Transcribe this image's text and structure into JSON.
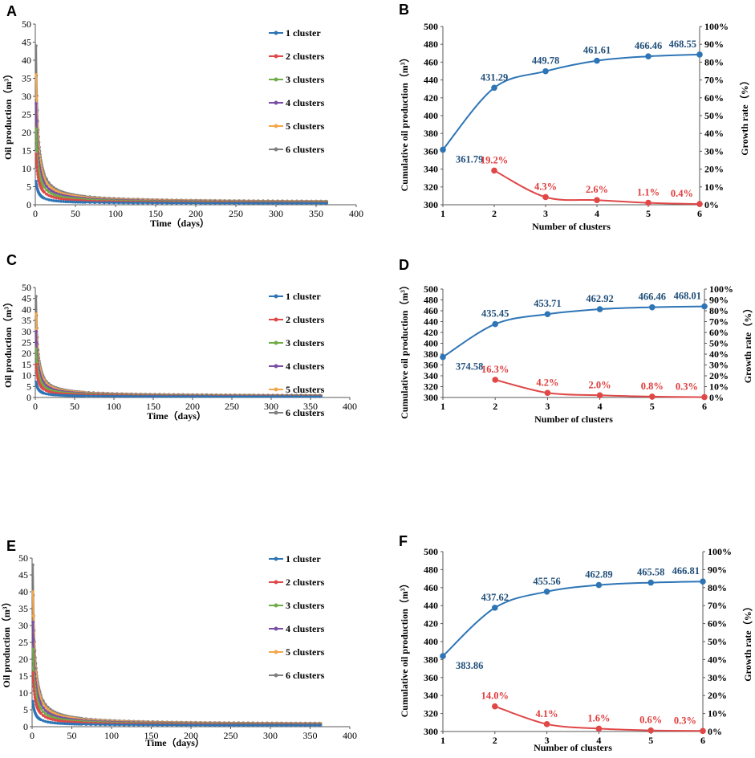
{
  "colors": {
    "c1": "#2E75B6",
    "c2": "#E04848",
    "c3": "#70AD47",
    "c4": "#7B4FA8",
    "c5": "#F4A64C",
    "c6": "#808080",
    "cum": "#2E75B6",
    "growth": "#E04848",
    "cum_label": "#1F4E79",
    "growth_label": "#E03C3C"
  },
  "chart_data": [
    {
      "panel": "A",
      "type": "line",
      "xlabel": "Time（days）",
      "ylabel": "Oil production（m³）",
      "xlim": [
        0,
        400
      ],
      "ylim": [
        0,
        50
      ],
      "xticks": [
        "0",
        "50",
        "100",
        "150",
        "200",
        "250",
        "300",
        "350",
        "400"
      ],
      "yticks": [
        "0",
        "5",
        "10",
        "15",
        "20",
        "25",
        "30",
        "35",
        "40",
        "45",
        "50"
      ],
      "legend_position": "top-right",
      "x_range_days": [
        1,
        365
      ],
      "series": [
        {
          "name": "1 cluster",
          "initial": 6.5,
          "late": 0.35
        },
        {
          "name": "2 clusters",
          "initial": 14.0,
          "late": 0.45
        },
        {
          "name": "3 clusters",
          "initial": 21.0,
          "late": 0.55
        },
        {
          "name": "4 clusters",
          "initial": 28.0,
          "late": 0.6
        },
        {
          "name": "5 clusters",
          "initial": 36.0,
          "late": 0.65
        },
        {
          "name": "6 clusters",
          "initial": 44.0,
          "late": 0.7
        }
      ]
    },
    {
      "panel": "B",
      "type": "line",
      "xlabel": "Number of clusters",
      "ylabel": "Cumulative oil production（m³）",
      "y2label": "Growth rate（%）",
      "categories": [
        1,
        2,
        3,
        4,
        5,
        6
      ],
      "ylim": [
        300,
        500
      ],
      "y2lim": [
        0,
        100
      ],
      "yticks": [
        "300",
        "320",
        "340",
        "360",
        "380",
        "400",
        "420",
        "440",
        "460",
        "480",
        "500"
      ],
      "y2ticks": [
        "0%",
        "10%",
        "20%",
        "30%",
        "40%",
        "50%",
        "60%",
        "70%",
        "80%",
        "90%",
        "100%"
      ],
      "cumulative": [
        361.79,
        431.29,
        449.78,
        461.61,
        466.46,
        468.55
      ],
      "cumulative_labels": [
        "361.79",
        "431.29",
        "449.78",
        "461.61",
        "466.46",
        "468.55"
      ],
      "growth": [
        19.2,
        4.3,
        2.6,
        1.1,
        0.4
      ],
      "growth_labels": [
        "19.2%",
        "4.3%",
        "2.6%",
        "1.1%",
        "0.4%"
      ]
    },
    {
      "panel": "C",
      "type": "line",
      "xlabel": "Time（days）",
      "ylabel": "Oil production（m³）",
      "xlim": [
        0,
        400
      ],
      "ylim": [
        0,
        50
      ],
      "xticks": [
        "0",
        "50",
        "100",
        "150",
        "200",
        "250",
        "300",
        "350",
        "400"
      ],
      "yticks": [
        "0",
        "5",
        "10",
        "15",
        "20",
        "25",
        "30",
        "35",
        "40",
        "45",
        "50"
      ],
      "legend_position": "top-right",
      "x_range_days": [
        1,
        365
      ],
      "series": [
        {
          "name": "1 cluster",
          "initial": 7.0,
          "late": 0.35
        },
        {
          "name": "2 clusters",
          "initial": 15.0,
          "late": 0.45
        },
        {
          "name": "3 clusters",
          "initial": 22.0,
          "late": 0.55
        },
        {
          "name": "4 clusters",
          "initial": 30.0,
          "late": 0.6
        },
        {
          "name": "5 clusters",
          "initial": 38.0,
          "late": 0.65
        },
        {
          "name": "6 clusters",
          "initial": 46.0,
          "late": 0.7
        }
      ]
    },
    {
      "panel": "D",
      "type": "line",
      "xlabel": "Number of clusters",
      "ylabel": "Cumulative oil production（m³）",
      "y2label": "Growth rate（%）",
      "categories": [
        1,
        2,
        3,
        4,
        5,
        6
      ],
      "ylim": [
        300,
        500
      ],
      "y2lim": [
        0,
        100
      ],
      "yticks": [
        "300",
        "320",
        "340",
        "360",
        "380",
        "400",
        "420",
        "440",
        "460",
        "480",
        "500"
      ],
      "y2ticks": [
        "0%",
        "10%",
        "20%",
        "30%",
        "40%",
        "50%",
        "60%",
        "70%",
        "80%",
        "90%",
        "100%"
      ],
      "cumulative": [
        374.58,
        435.45,
        453.71,
        462.92,
        466.46,
        468.01
      ],
      "cumulative_labels": [
        "374.58",
        "435.45",
        "453.71",
        "462.92",
        "466.46",
        "468.01"
      ],
      "growth": [
        16.3,
        4.2,
        2.0,
        0.8,
        0.3
      ],
      "growth_labels": [
        "16.3%",
        "4.2%",
        "2.0%",
        "0.8%",
        "0.3%"
      ]
    },
    {
      "panel": "E",
      "type": "line",
      "xlabel": "Time（days）",
      "ylabel": "Oil production（m³）",
      "xlim": [
        0,
        400
      ],
      "ylim": [
        0,
        50
      ],
      "xticks": [
        "0",
        "50",
        "100",
        "150",
        "200",
        "250",
        "300",
        "350",
        "400"
      ],
      "yticks": [
        "0",
        "5",
        "10",
        "15",
        "20",
        "25",
        "30",
        "35",
        "40",
        "45",
        "50"
      ],
      "legend_position": "top-right",
      "x_range_days": [
        1,
        365
      ],
      "series": [
        {
          "name": "1 cluster",
          "initial": 7.5,
          "late": 0.35
        },
        {
          "name": "2 clusters",
          "initial": 16.0,
          "late": 0.45
        },
        {
          "name": "3 clusters",
          "initial": 23.0,
          "late": 0.55
        },
        {
          "name": "4 clusters",
          "initial": 31.0,
          "late": 0.6
        },
        {
          "name": "5 clusters",
          "initial": 40.0,
          "late": 0.65
        },
        {
          "name": "6 clusters",
          "initial": 48.0,
          "late": 0.7
        }
      ]
    },
    {
      "panel": "F",
      "type": "line",
      "xlabel": "Number of clusters",
      "ylabel": "Cumulative oil production（m³）",
      "y2label": "Growth rate（%）",
      "categories": [
        1,
        2,
        3,
        4,
        5,
        6
      ],
      "ylim": [
        300,
        500
      ],
      "y2lim": [
        0,
        100
      ],
      "yticks": [
        "300",
        "320",
        "340",
        "360",
        "380",
        "400",
        "420",
        "440",
        "460",
        "480",
        "500"
      ],
      "y2ticks": [
        "0%",
        "10%",
        "20%",
        "30%",
        "40%",
        "50%",
        "60%",
        "70%",
        "80%",
        "90%",
        "100%"
      ],
      "cumulative": [
        383.86,
        437.62,
        455.56,
        462.89,
        465.58,
        466.81
      ],
      "cumulative_labels": [
        "383.86",
        "437.62",
        "455.56",
        "462.89",
        "465.58",
        "466.81"
      ],
      "growth": [
        14.0,
        4.1,
        1.6,
        0.6,
        0.3
      ],
      "growth_labels": [
        "14.0%",
        "4.1%",
        "1.6%",
        "0.6%",
        "0.3%"
      ]
    }
  ]
}
